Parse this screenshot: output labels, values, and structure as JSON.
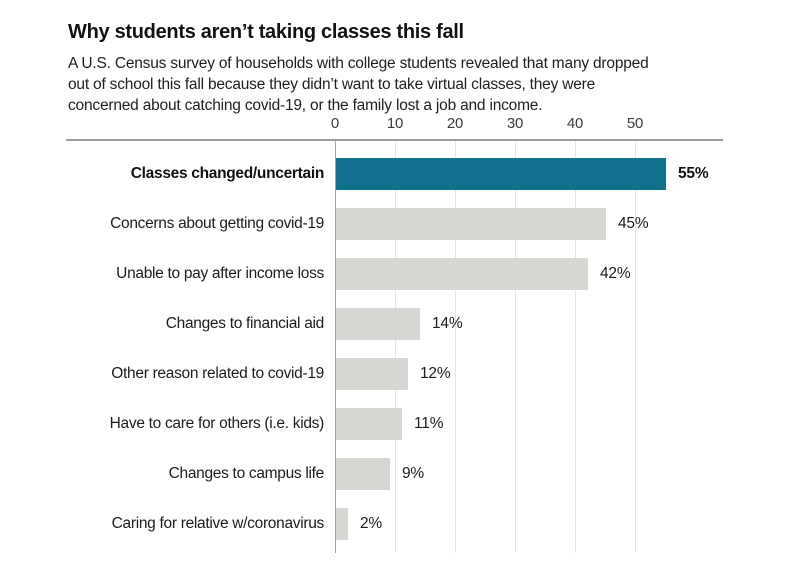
{
  "chart": {
    "title": "Why students aren’t taking classes this fall",
    "subtitle_lines": [
      "A U.S. Census survey of households with college students revealed that many dropped",
      "out of school this fall because they didn’t want to take virtual classes, they were",
      "concerned about catching covid-19, or the family lost a job and income."
    ]
  },
  "chart_data": {
    "type": "bar",
    "orientation": "horizontal",
    "title": "Why students aren’t taking classes this fall",
    "xlabel": "",
    "ylabel": "",
    "categories": [
      "Classes changed/uncertain",
      "Concerns about getting covid-19",
      "Unable to pay after income loss",
      "Changes to financial aid",
      "Other reason related to covid-19",
      "Have to care for others (i.e. kids)",
      "Changes to campus life",
      "Caring for relative w/coronavirus"
    ],
    "values": [
      55,
      45,
      42,
      14,
      12,
      11,
      9,
      2
    ],
    "value_labels": [
      "55%",
      "45%",
      "42%",
      "14%",
      "12%",
      "11%",
      "9%",
      "2%"
    ],
    "highlight_index": 0,
    "x_ticks": [
      0,
      10,
      20,
      30,
      40,
      50
    ],
    "xlim": [
      0,
      64
    ],
    "grid": "vertical",
    "legend": "none",
    "colors": {
      "highlight_bar": "#11708e",
      "default_bar": "#d6d6d2",
      "axis_rule": "#9e9e9e",
      "gridline": "#e3e3e0"
    }
  }
}
